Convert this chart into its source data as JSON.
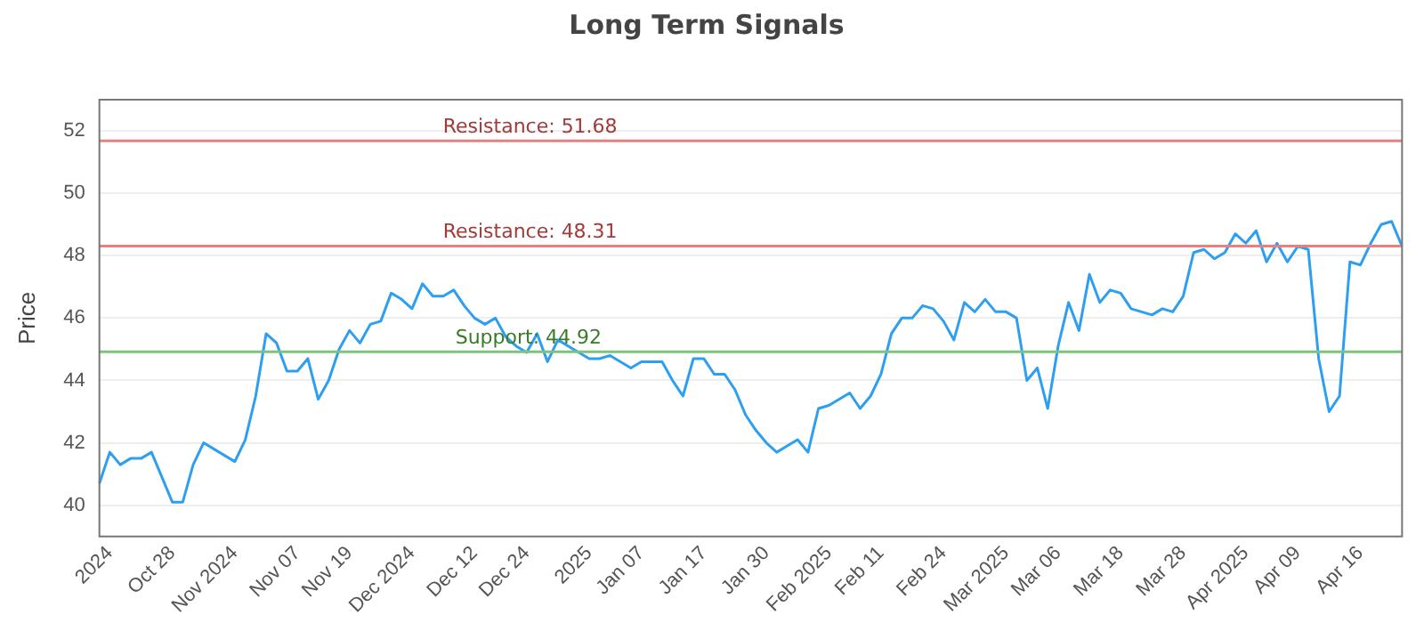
{
  "chart_data": {
    "type": "line",
    "title": "Long Term Signals",
    "ylabel": "Price",
    "categories": [
      null,
      "2024",
      null,
      null,
      null,
      null,
      null,
      "Oct 28",
      null,
      null,
      null,
      null,
      null,
      "Nov 2024",
      null,
      null,
      null,
      null,
      null,
      "Nov 07",
      null,
      null,
      null,
      null,
      "Nov 19",
      null,
      null,
      null,
      null,
      null,
      "Dec 2024",
      null,
      null,
      null,
      null,
      null,
      "Dec 12",
      null,
      null,
      null,
      null,
      "Dec 24",
      null,
      null,
      null,
      null,
      null,
      "2025",
      null,
      null,
      null,
      null,
      "Jan 07",
      null,
      null,
      null,
      null,
      null,
      "Jan 17",
      null,
      null,
      null,
      null,
      null,
      "Jan 30",
      null,
      null,
      null,
      null,
      null,
      "Feb 2025",
      null,
      null,
      null,
      null,
      "Feb 11",
      null,
      null,
      null,
      null,
      null,
      "Feb 24",
      null,
      null,
      null,
      null,
      null,
      "Mar 2025",
      null,
      null,
      null,
      null,
      "Mar 06",
      null,
      null,
      null,
      null,
      null,
      "Mar 18",
      null,
      null,
      null,
      null,
      null,
      "Mar 28",
      null,
      null,
      null,
      null,
      null,
      "Apr 2025",
      null,
      null,
      null,
      null,
      "Apr 09",
      null,
      null,
      null,
      null,
      null,
      "Apr 16",
      null,
      null,
      null,
      null
    ],
    "series": [
      {
        "color": "#2e9ff0",
        "values": [
          40.7,
          41.7,
          41.3,
          41.5,
          41.5,
          41.7,
          40.9,
          40.1,
          40.1,
          41.3,
          42.0,
          41.8,
          41.6,
          41.4,
          42.1,
          43.5,
          45.5,
          45.2,
          44.3,
          44.3,
          44.7,
          43.4,
          44.0,
          45.0,
          45.6,
          45.2,
          45.8,
          45.9,
          46.8,
          46.6,
          46.3,
          47.1,
          46.7,
          46.7,
          46.9,
          46.4,
          46.0,
          45.8,
          46.0,
          45.4,
          45.1,
          44.9,
          45.5,
          44.6,
          45.3,
          45.1,
          44.9,
          44.7,
          44.7,
          44.8,
          44.6,
          44.4,
          44.6,
          44.6,
          44.6,
          44.0,
          43.5,
          44.7,
          44.7,
          44.2,
          44.2,
          43.7,
          42.9,
          42.4,
          42.0,
          41.7,
          41.9,
          42.1,
          41.7,
          43.1,
          43.2,
          43.4,
          43.6,
          43.1,
          43.5,
          44.2,
          45.5,
          46.0,
          46.0,
          46.4,
          46.3,
          45.9,
          45.3,
          46.5,
          46.2,
          46.6,
          46.2,
          46.2,
          46.0,
          44.0,
          44.4,
          43.1,
          45.1,
          46.5,
          45.6,
          47.4,
          46.5,
          46.9,
          46.8,
          46.3,
          46.2,
          46.1,
          46.3,
          46.2,
          46.7,
          48.1,
          48.2,
          47.9,
          48.1,
          48.7,
          48.4,
          48.8,
          47.8,
          48.4,
          47.8,
          48.3,
          48.2,
          44.7,
          43.0,
          43.5,
          47.8,
          47.7,
          48.4,
          49.0,
          49.1,
          48.3
        ]
      }
    ],
    "ylim": [
      39,
      53
    ],
    "yticks": [
      40,
      42,
      44,
      46,
      48,
      50,
      52
    ],
    "grid": "y",
    "legend": false,
    "marker": "none",
    "ref_lines": [
      {
        "axis": "y",
        "value": 51.68,
        "label": "Resistance: 51.68",
        "color": "#e88080"
      },
      {
        "axis": "y",
        "value": 48.31,
        "label": "Resistance: 48.31",
        "color": "#e88080"
      },
      {
        "axis": "y",
        "value": 44.92,
        "label": "Support: 44.92",
        "color": "#7cc47c"
      }
    ]
  }
}
